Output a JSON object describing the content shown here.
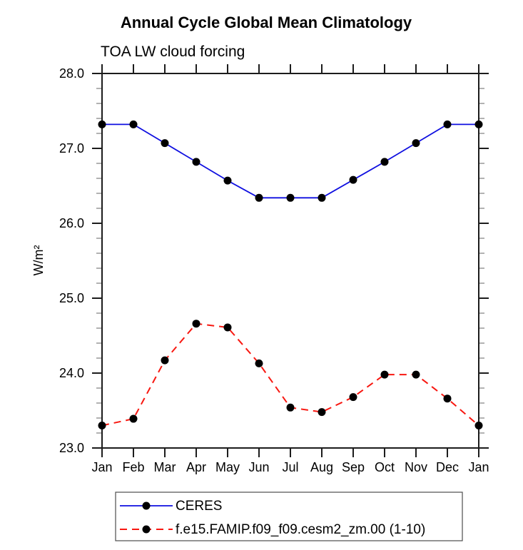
{
  "chart_data": {
    "type": "line",
    "title": "Annual Cycle Global Mean Climatology",
    "subtitle": "TOA LW cloud forcing",
    "ylabel": "W/m²",
    "categories": [
      "Jan",
      "Feb",
      "Mar",
      "Apr",
      "May",
      "Jun",
      "Jul",
      "Aug",
      "Sep",
      "Oct",
      "Nov",
      "Dec",
      "Jan"
    ],
    "ylim": [
      23.0,
      28.0
    ],
    "ytick_step": 1.0,
    "ytick_minor_step": 0.2,
    "ytick_labels": [
      "23.0",
      "24.0",
      "25.0",
      "26.0",
      "27.0",
      "28.0"
    ],
    "grid": false,
    "legend_position": "bottom",
    "series": [
      {
        "name": "CERES",
        "color": "#0f0fe0",
        "line_style": "solid",
        "marker": "filled-circle",
        "marker_color": "#000000",
        "values": [
          27.32,
          27.32,
          27.07,
          26.82,
          26.57,
          26.34,
          26.34,
          26.34,
          26.58,
          26.82,
          27.07,
          27.32,
          27.32
        ]
      },
      {
        "name": "f.e15.FAMIP.f09_f09.cesm2_zm.00 (1-10)",
        "color": "#f81710",
        "line_style": "dashed",
        "marker": "filled-circle",
        "marker_color": "#000000",
        "values": [
          23.3,
          23.39,
          24.17,
          24.66,
          24.61,
          24.13,
          23.54,
          23.48,
          23.68,
          23.98,
          23.98,
          23.66,
          23.3
        ]
      }
    ],
    "colors": {
      "axis": "#1c1c1c",
      "minor_tick": "#999999",
      "legend_border": "#4d4d4d",
      "background": "#ffffff"
    }
  }
}
